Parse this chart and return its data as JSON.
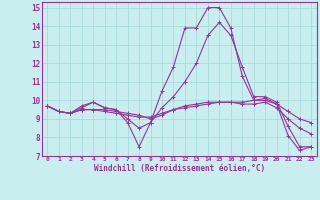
{
  "title": "",
  "xlabel": "Windchill (Refroidissement éolien,°C)",
  "ylabel": "",
  "xlim": [
    -0.5,
    23.5
  ],
  "ylim": [
    7.0,
    15.3
  ],
  "yticks": [
    7,
    8,
    9,
    10,
    11,
    12,
    13,
    14,
    15
  ],
  "xticks": [
    0,
    1,
    2,
    3,
    4,
    5,
    6,
    7,
    8,
    9,
    10,
    11,
    12,
    13,
    14,
    15,
    16,
    17,
    18,
    19,
    20,
    21,
    22,
    23
  ],
  "bg_color": "#c8eef0",
  "line_color": "#993399",
  "grid_color": "#a0d8d8",
  "series": [
    [
      9.7,
      9.4,
      9.3,
      9.7,
      9.9,
      9.6,
      9.5,
      8.8,
      7.5,
      8.8,
      10.5,
      11.8,
      13.9,
      13.9,
      15.0,
      15.0,
      13.9,
      11.3,
      10.0,
      10.1,
      9.8,
      8.1,
      7.3,
      7.5
    ],
    [
      9.7,
      9.4,
      9.3,
      9.5,
      9.5,
      9.4,
      9.3,
      9.2,
      9.1,
      9.1,
      9.3,
      9.5,
      9.6,
      9.7,
      9.8,
      9.9,
      9.9,
      9.9,
      10.0,
      10.0,
      9.8,
      9.4,
      9.0,
      8.8
    ],
    [
      9.7,
      9.4,
      9.3,
      9.5,
      9.5,
      9.5,
      9.4,
      9.3,
      9.2,
      9.0,
      9.2,
      9.5,
      9.7,
      9.8,
      9.9,
      9.9,
      9.9,
      9.8,
      9.8,
      9.9,
      9.6,
      9.0,
      8.5,
      8.2
    ],
    [
      9.7,
      9.4,
      9.3,
      9.6,
      9.9,
      9.6,
      9.5,
      9.0,
      8.5,
      8.8,
      9.6,
      10.2,
      11.0,
      12.0,
      13.5,
      14.2,
      13.5,
      11.8,
      10.2,
      10.2,
      9.9,
      8.6,
      7.5,
      7.5
    ]
  ],
  "figsize": [
    3.2,
    2.0
  ],
  "dpi": 100
}
